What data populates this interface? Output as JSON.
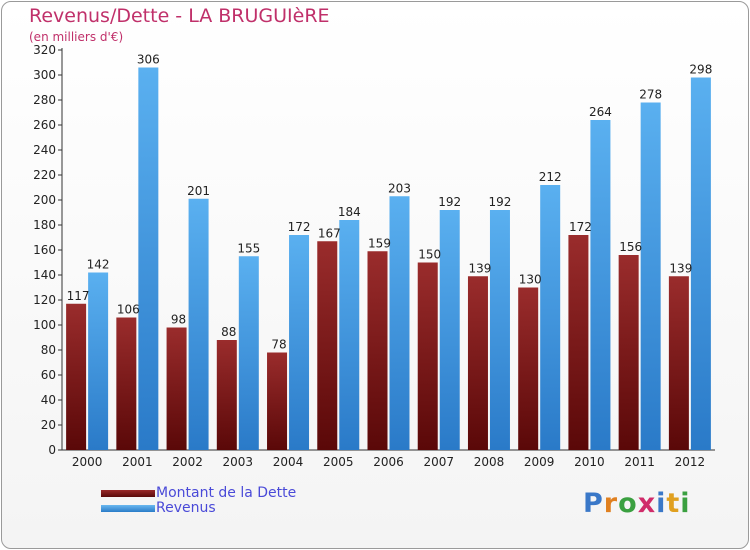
{
  "chart_data": {
    "type": "bar",
    "title": "Revenus/Dette - LA BRUGUIèRE",
    "subtitle": "(en milliers d'€)",
    "categories": [
      "2000",
      "2001",
      "2002",
      "2003",
      "2004",
      "2005",
      "2006",
      "2007",
      "2008",
      "2009",
      "2010",
      "2011",
      "2012"
    ],
    "series": [
      {
        "name": "Montant de la Dette",
        "color": "#7a1a1a",
        "values": [
          117,
          106,
          98,
          88,
          78,
          167,
          159,
          150,
          139,
          130,
          172,
          156,
          139
        ]
      },
      {
        "name": "Revenus",
        "color": "#4aa3e8",
        "values": [
          142,
          306,
          201,
          155,
          172,
          184,
          203,
          192,
          192,
          212,
          264,
          278,
          298
        ]
      }
    ],
    "ylim": [
      0,
      320
    ],
    "ytick_step": 20,
    "grid": false,
    "legend_position": "bottom-left"
  },
  "brand": {
    "logo_text": "Proxiti",
    "letter_colors": [
      "#3a78c8",
      "#e08020",
      "#3aa040",
      "#d02c6a",
      "#3a78c8",
      "#e0a020",
      "#3aa040"
    ]
  }
}
